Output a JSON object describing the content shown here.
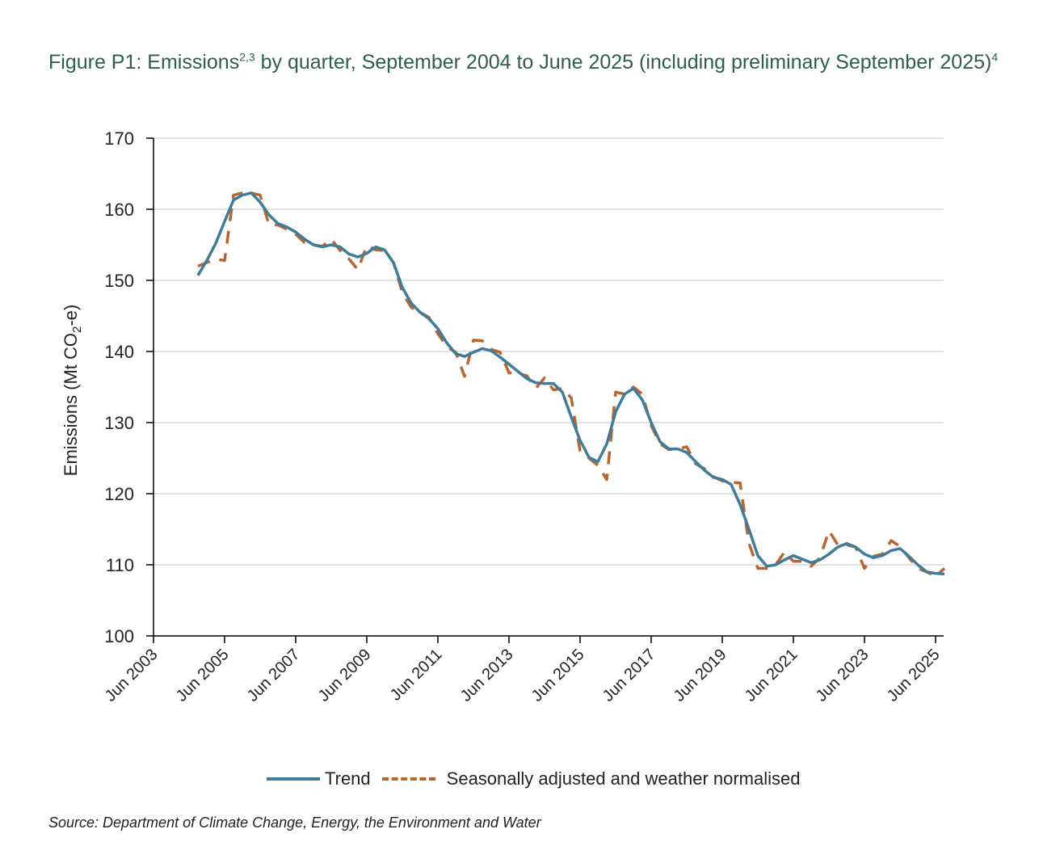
{
  "title": {
    "t1": "Figure P1: Emissions",
    "s1": "2,3",
    "t2": " by quarter, September 2004 to June 2025 (including preliminary September 2025)",
    "s2": "4"
  },
  "source": "Source: Department of Climate Change, Energy, the Environment and Water",
  "colors": {
    "trend": "#3e7c9c",
    "seasonal": "#b8652e",
    "grid": "#d9d9d9",
    "axis": "#000000"
  },
  "chart_data": {
    "type": "line",
    "ylabel": "Emissions (Mt CO2-e)",
    "ylabel_parts": [
      "Emissions (Mt CO",
      "2",
      "-e)"
    ],
    "ylim": [
      100,
      170
    ],
    "yticks": [
      100,
      110,
      120,
      130,
      140,
      150,
      160,
      170
    ],
    "xlim": [
      2003.5,
      2025.5
    ],
    "xticks": [
      {
        "x": 2003.5,
        "label": "Jun 2003"
      },
      {
        "x": 2005.5,
        "label": "Jun 2005"
      },
      {
        "x": 2007.5,
        "label": "Jun 2007"
      },
      {
        "x": 2009.5,
        "label": "Jun 2009"
      },
      {
        "x": 2011.5,
        "label": "Jun 2011"
      },
      {
        "x": 2013.5,
        "label": "Jun 2013"
      },
      {
        "x": 2015.5,
        "label": "Jun 2015"
      },
      {
        "x": 2017.5,
        "label": "Jun 2017"
      },
      {
        "x": 2019.5,
        "label": "Jun 2019"
      },
      {
        "x": 2021.5,
        "label": "Jun 2021"
      },
      {
        "x": 2023.5,
        "label": "Jun 2023"
      },
      {
        "x": 2025.5,
        "label": "Jun 2025"
      }
    ],
    "grid": true,
    "legend": "bottom",
    "series": [
      {
        "name": "Trend",
        "style": "solid",
        "points": [
          [
            2004.75,
            150.7
          ],
          [
            2005.0,
            152.8
          ],
          [
            2005.25,
            155.2
          ],
          [
            2005.5,
            158.3
          ],
          [
            2005.75,
            161.3
          ],
          [
            2006.0,
            162.0
          ],
          [
            2006.25,
            162.3
          ],
          [
            2006.5,
            161.0
          ],
          [
            2006.75,
            159.2
          ],
          [
            2007.0,
            158.0
          ],
          [
            2007.25,
            157.5
          ],
          [
            2007.5,
            156.8
          ],
          [
            2007.75,
            155.8
          ],
          [
            2008.0,
            155.0
          ],
          [
            2008.25,
            154.7
          ],
          [
            2008.5,
            155.0
          ],
          [
            2008.75,
            154.7
          ],
          [
            2009.0,
            153.7
          ],
          [
            2009.25,
            153.3
          ],
          [
            2009.5,
            153.8
          ],
          [
            2009.75,
            154.7
          ],
          [
            2010.0,
            154.3
          ],
          [
            2010.25,
            152.5
          ],
          [
            2010.5,
            149.0
          ],
          [
            2010.75,
            146.8
          ],
          [
            2011.0,
            145.5
          ],
          [
            2011.25,
            144.6
          ],
          [
            2011.5,
            143.2
          ],
          [
            2011.75,
            141.2
          ],
          [
            2012.0,
            139.7
          ],
          [
            2012.25,
            139.3
          ],
          [
            2012.5,
            139.9
          ],
          [
            2012.75,
            140.4
          ],
          [
            2013.0,
            140.1
          ],
          [
            2013.25,
            139.2
          ],
          [
            2013.5,
            138.2
          ],
          [
            2013.75,
            137.2
          ],
          [
            2014.0,
            136.2
          ],
          [
            2014.25,
            135.6
          ],
          [
            2014.5,
            135.5
          ],
          [
            2014.75,
            135.5
          ],
          [
            2015.0,
            134.3
          ],
          [
            2015.25,
            130.8
          ],
          [
            2015.5,
            127.5
          ],
          [
            2015.75,
            125.1
          ],
          [
            2016.0,
            124.5
          ],
          [
            2016.25,
            127.0
          ],
          [
            2016.5,
            131.5
          ],
          [
            2016.75,
            134.0
          ],
          [
            2017.0,
            134.8
          ],
          [
            2017.25,
            133.2
          ],
          [
            2017.5,
            130.0
          ],
          [
            2017.75,
            127.3
          ],
          [
            2018.0,
            126.3
          ],
          [
            2018.25,
            126.3
          ],
          [
            2018.5,
            125.8
          ],
          [
            2018.75,
            124.5
          ],
          [
            2019.0,
            123.3
          ],
          [
            2019.25,
            122.3
          ],
          [
            2019.5,
            122.0
          ],
          [
            2019.75,
            121.3
          ],
          [
            2020.0,
            118.5
          ],
          [
            2020.25,
            115.0
          ],
          [
            2020.5,
            111.3
          ],
          [
            2020.75,
            109.8
          ],
          [
            2021.0,
            110.0
          ],
          [
            2021.25,
            110.7
          ],
          [
            2021.5,
            111.3
          ],
          [
            2021.75,
            110.8
          ],
          [
            2022.0,
            110.3
          ],
          [
            2022.25,
            110.7
          ],
          [
            2022.5,
            111.5
          ],
          [
            2022.75,
            112.5
          ],
          [
            2023.0,
            113.0
          ],
          [
            2023.25,
            112.5
          ],
          [
            2023.5,
            111.5
          ],
          [
            2023.75,
            111.0
          ],
          [
            2024.0,
            111.3
          ],
          [
            2024.25,
            112.0
          ],
          [
            2024.5,
            112.3
          ],
          [
            2024.75,
            111.2
          ],
          [
            2025.0,
            110.0
          ],
          [
            2025.25,
            109.0
          ],
          [
            2025.5,
            108.8
          ],
          [
            2025.75,
            108.7
          ]
        ]
      },
      {
        "name": "Seasonally adjusted and weather normalised",
        "style": "dashed",
        "points": [
          [
            2004.75,
            152.0
          ],
          [
            2005.0,
            152.5
          ],
          [
            2005.25,
            153.0
          ],
          [
            2005.5,
            152.8
          ],
          [
            2005.75,
            162.0
          ],
          [
            2006.0,
            162.3
          ],
          [
            2006.25,
            162.3
          ],
          [
            2006.5,
            162.0
          ],
          [
            2006.75,
            157.8
          ],
          [
            2007.0,
            157.8
          ],
          [
            2007.25,
            157.2
          ],
          [
            2007.5,
            156.5
          ],
          [
            2007.75,
            155.3
          ],
          [
            2008.0,
            155.0
          ],
          [
            2008.25,
            154.8
          ],
          [
            2008.5,
            155.8
          ],
          [
            2008.75,
            154.2
          ],
          [
            2009.0,
            153.0
          ],
          [
            2009.25,
            151.5
          ],
          [
            2009.5,
            154.9
          ],
          [
            2009.75,
            154.3
          ],
          [
            2010.0,
            154.2
          ],
          [
            2010.25,
            152.5
          ],
          [
            2010.5,
            148.3
          ],
          [
            2010.75,
            146.2
          ],
          [
            2011.0,
            145.5
          ],
          [
            2011.25,
            144.8
          ],
          [
            2011.5,
            142.5
          ],
          [
            2011.75,
            140.7
          ],
          [
            2012.0,
            139.9
          ],
          [
            2012.25,
            136.5
          ],
          [
            2012.5,
            141.6
          ],
          [
            2012.75,
            141.5
          ],
          [
            2013.0,
            140.3
          ],
          [
            2013.25,
            139.9
          ],
          [
            2013.5,
            137.0
          ],
          [
            2013.75,
            136.9
          ],
          [
            2014.0,
            136.6
          ],
          [
            2014.25,
            134.8
          ],
          [
            2014.5,
            136.3
          ],
          [
            2014.75,
            134.6
          ],
          [
            2015.0,
            134.8
          ],
          [
            2015.25,
            133.5
          ],
          [
            2015.5,
            126.0
          ],
          [
            2015.75,
            125.0
          ],
          [
            2016.0,
            124.0
          ],
          [
            2016.25,
            122.0
          ],
          [
            2016.5,
            134.3
          ],
          [
            2016.75,
            134.0
          ],
          [
            2017.0,
            135.0
          ],
          [
            2017.25,
            134.0
          ],
          [
            2017.5,
            129.6
          ],
          [
            2017.75,
            127.0
          ],
          [
            2018.0,
            126.2
          ],
          [
            2018.25,
            126.3
          ],
          [
            2018.5,
            126.6
          ],
          [
            2018.75,
            124.2
          ],
          [
            2019.0,
            123.5
          ],
          [
            2019.25,
            122.4
          ],
          [
            2019.5,
            121.8
          ],
          [
            2019.75,
            121.6
          ],
          [
            2020.0,
            121.5
          ],
          [
            2020.25,
            113.0
          ],
          [
            2020.5,
            109.5
          ],
          [
            2020.75,
            109.5
          ],
          [
            2021.0,
            110.0
          ],
          [
            2021.25,
            111.8
          ],
          [
            2021.5,
            110.5
          ],
          [
            2021.75,
            110.5
          ],
          [
            2022.0,
            109.8
          ],
          [
            2022.25,
            111.0
          ],
          [
            2022.5,
            114.8
          ],
          [
            2022.75,
            112.8
          ],
          [
            2023.0,
            112.8
          ],
          [
            2023.25,
            112.5
          ],
          [
            2023.5,
            109.5
          ],
          [
            2023.75,
            111.2
          ],
          [
            2024.0,
            111.5
          ],
          [
            2024.25,
            113.4
          ],
          [
            2024.5,
            112.6
          ],
          [
            2024.75,
            111.0
          ],
          [
            2025.0,
            109.5
          ],
          [
            2025.25,
            109.0
          ],
          [
            2025.5,
            108.4
          ],
          [
            2025.75,
            109.5
          ]
        ]
      }
    ]
  }
}
